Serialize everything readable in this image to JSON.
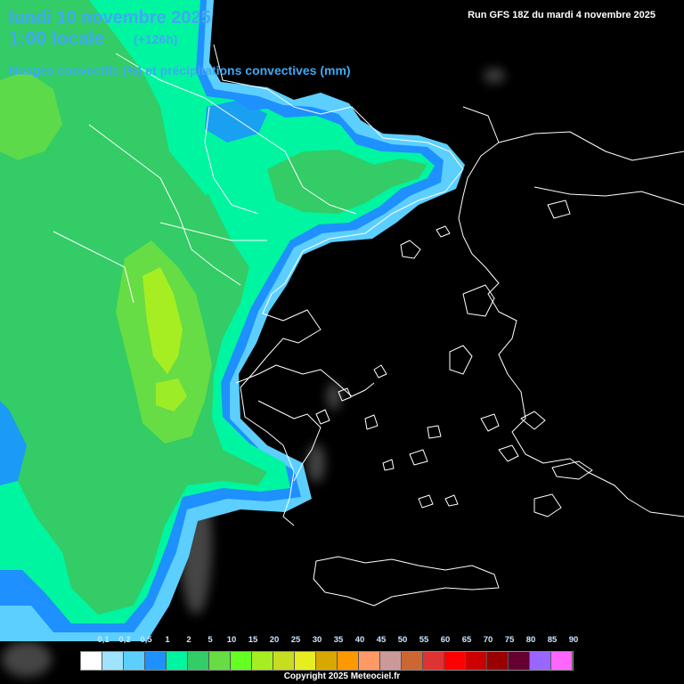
{
  "header": {
    "date": "lundi 10 novembre 2025",
    "local_time": "1:00 locale",
    "lead_time": "(+126h)",
    "variable": "Nuages convectifs (%) et précipitations convectives (mm)",
    "run_info": "Run GFS 18Z du mardi 4 novembre 2025"
  },
  "legend": {
    "labels": [
      "0,1",
      "0,2",
      "0,5",
      "1",
      "2",
      "5",
      "10",
      "15",
      "20",
      "25",
      "30",
      "35",
      "40",
      "45",
      "50",
      "55",
      "60",
      "65",
      "70",
      "75",
      "80",
      "85",
      "90"
    ],
    "colors": [
      "#ffffff",
      "#9fe4ff",
      "#5ccfff",
      "#1e90ff",
      "#00f5a0",
      "#33cc66",
      "#66dd44",
      "#66ff22",
      "#a6ee22",
      "#c8dd22",
      "#e6ee22",
      "#d9a800",
      "#ff9900",
      "#ff9966",
      "#cc9999",
      "#cc6633",
      "#dd3333",
      "#ff0000",
      "#cc0000",
      "#990000",
      "#660033",
      "#9966ff",
      "#ff66ff"
    ]
  },
  "map": {
    "region": "Balkans / Grèce / Mer Égée",
    "colors": {
      "background": "#000000",
      "borders": "#ffffff",
      "cloud_light_blue": "#5ccfff",
      "cloud_blue": "#1e90ff",
      "cloud_cyan_green": "#00f5a0",
      "cloud_green": "#33cc66",
      "cloud_lime": "#66dd44",
      "cloud_yellow_green": "#a6ee22"
    }
  },
  "footer": {
    "copyright": "Copyright 2025 Meteociel.fr"
  }
}
